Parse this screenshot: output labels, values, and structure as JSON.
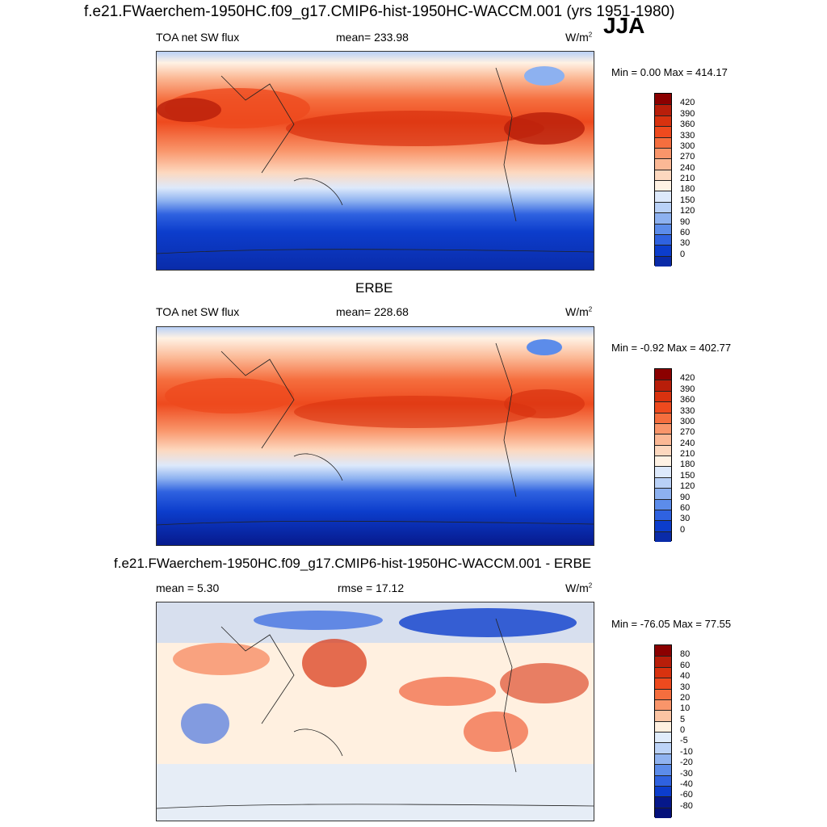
{
  "main_title": "f.e21.FWaerchem-1950HC.f09_g17.CMIP6-hist-1950HC-WACCM.001 (yrs 1951-1980)",
  "season": "JJA",
  "panels": [
    {
      "title": "",
      "left_label": "TOA net SW flux",
      "center_label": "mean= 233.98",
      "units": "W/m",
      "units_sup": "2",
      "minmax": "Min =   0.00 Max = 414.17",
      "colorbar_labels": [
        "420",
        "390",
        "360",
        "330",
        "300",
        "270",
        "240",
        "210",
        "180",
        "150",
        "120",
        "90",
        "60",
        "30",
        "0"
      ]
    },
    {
      "title": "ERBE",
      "left_label": "TOA net SW flux",
      "center_label": "mean= 228.68",
      "units": "W/m",
      "units_sup": "2",
      "minmax": "Min =  -0.92 Max = 402.77",
      "colorbar_labels": [
        "420",
        "390",
        "360",
        "330",
        "300",
        "270",
        "240",
        "210",
        "180",
        "150",
        "120",
        "90",
        "60",
        "30",
        "0"
      ]
    },
    {
      "title": "f.e21.FWaerchem-1950HC.f09_g17.CMIP6-hist-1950HC-WACCM.001 - ERBE",
      "left_label": "mean =   5.30",
      "center_label": "rmse =  17.12",
      "units": "W/m",
      "units_sup": "2",
      "minmax": "Min = -76.05 Max =  77.55",
      "colorbar_labels": [
        "80",
        "60",
        "40",
        "30",
        "20",
        "10",
        "5",
        "0",
        "-5",
        "-10",
        "-20",
        "-30",
        "-40",
        "-60",
        "-80"
      ]
    }
  ],
  "colors": {
    "abs_scale": [
      "#8b0000",
      "#b81e0a",
      "#d8320f",
      "#ee4a1e",
      "#f56e3e",
      "#f9956a",
      "#fbb895",
      "#fdd8bf",
      "#fff2e4",
      "#dde9fb",
      "#b9d1f7",
      "#8db1f0",
      "#5c8cea",
      "#2f62e0",
      "#0c3dcc",
      "#0a2ba8",
      "#06188a"
    ],
    "diff_scale": [
      "#8b0000",
      "#b81e0a",
      "#d8320f",
      "#ee4a1e",
      "#f56e3e",
      "#f9956a",
      "#fbc4a3",
      "#fff0e0",
      "#e0ecfb",
      "#bcd3f7",
      "#90b3f0",
      "#5c8cea",
      "#2f62e0",
      "#0c3dcc",
      "#06188a",
      "#04107a"
    ]
  }
}
